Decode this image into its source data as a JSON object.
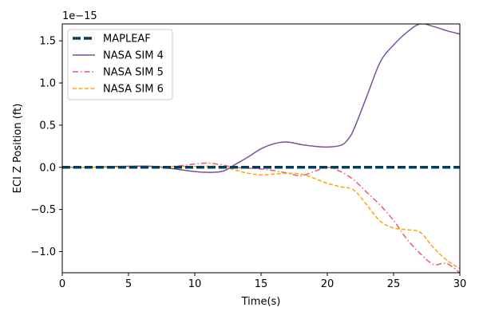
{
  "chart_data": {
    "type": "line",
    "xlabel": "Time(s)",
    "ylabel": "ECI Z Position (ft)",
    "scale_label": "1e−15",
    "xlim": [
      0,
      30
    ],
    "ylim": [
      -1.25,
      1.7
    ],
    "xticks": [
      0,
      5,
      10,
      15,
      20,
      25,
      30
    ],
    "xtick_labels": [
      "0",
      "5",
      "10",
      "15",
      "20",
      "25",
      "30"
    ],
    "yticks": [
      -1.0,
      -0.5,
      0.0,
      0.5,
      1.0,
      1.5
    ],
    "ytick_labels": [
      "−1.0",
      "−0.5",
      "0.0",
      "0.5",
      "1.0",
      "1.5"
    ],
    "grid": false,
    "legend_position": "top-left",
    "series": [
      {
        "name": "MAPLEAF",
        "color": "#003f5c",
        "style": "dashed-thick",
        "x": [
          0,
          30
        ],
        "y": [
          0,
          0
        ]
      },
      {
        "name": "NASA SIM 4",
        "color": "#7a4f9a",
        "style": "solid",
        "x": [
          0,
          2,
          4,
          6,
          7,
          8,
          9,
          10,
          11,
          12,
          12.5,
          13,
          14,
          15,
          16,
          17,
          18,
          19,
          20,
          21,
          21.5,
          22,
          23,
          24,
          25,
          26,
          27,
          28,
          29,
          30
        ],
        "y": [
          0.0,
          0.0,
          0.01,
          0.015,
          0.01,
          -0.01,
          -0.03,
          -0.05,
          -0.06,
          -0.05,
          -0.02,
          0.03,
          0.12,
          0.22,
          0.28,
          0.3,
          0.27,
          0.25,
          0.24,
          0.26,
          0.32,
          0.45,
          0.85,
          1.25,
          1.45,
          1.6,
          1.7,
          1.67,
          1.62,
          1.58
        ]
      },
      {
        "name": "NASA SIM 5",
        "color": "#ef5675",
        "style": "dashdot",
        "x": [
          0,
          2,
          4,
          6,
          8,
          9,
          10,
          11,
          12,
          13,
          14,
          15,
          16,
          17,
          18,
          19,
          20,
          21,
          22,
          23,
          24,
          25,
          26,
          27,
          28,
          29,
          30
        ],
        "y": [
          0.0,
          0.0,
          0.0,
          0.01,
          0.01,
          0.02,
          0.04,
          0.05,
          0.03,
          0.0,
          -0.01,
          -0.02,
          -0.04,
          -0.07,
          -0.1,
          -0.05,
          0.0,
          -0.05,
          -0.15,
          -0.3,
          -0.45,
          -0.63,
          -0.85,
          -1.02,
          -1.15,
          -1.14,
          -1.25
        ]
      },
      {
        "name": "NASA SIM 6",
        "color": "#ffa600",
        "style": "dashed",
        "x": [
          0,
          2,
          4,
          6,
          8,
          10,
          12,
          13,
          14,
          15,
          16,
          17,
          18,
          19,
          20,
          21,
          22,
          23,
          24,
          25,
          26,
          27,
          28,
          29,
          30
        ],
        "y": [
          0.0,
          0.0,
          0.0,
          0.0,
          0.01,
          0.01,
          0.01,
          -0.03,
          -0.07,
          -0.09,
          -0.08,
          -0.07,
          -0.08,
          -0.13,
          -0.19,
          -0.23,
          -0.27,
          -0.45,
          -0.64,
          -0.72,
          -0.74,
          -0.77,
          -0.95,
          -1.1,
          -1.2
        ]
      }
    ]
  }
}
